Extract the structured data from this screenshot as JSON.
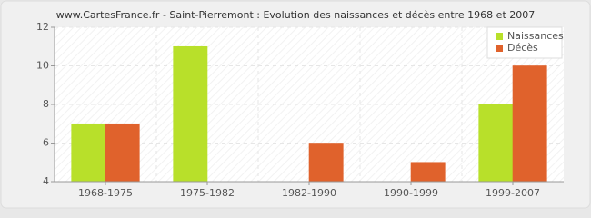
{
  "chart_data": {
    "type": "bar",
    "title": "www.CartesFrance.fr - Saint-Pierremont : Evolution des naissances et décès entre 1968 et 2007",
    "categories": [
      "1968-1975",
      "1975-1982",
      "1982-1990",
      "1990-1999",
      "1999-2007"
    ],
    "series": [
      {
        "name": "Naissances",
        "color": "#b8e02a",
        "values": [
          7,
          11,
          4,
          4,
          8
        ]
      },
      {
        "name": "Décès",
        "color": "#e0622c",
        "values": [
          7,
          4,
          6,
          5,
          10
        ]
      }
    ],
    "ylim": [
      4,
      12
    ],
    "yticks": [
      4,
      6,
      8,
      10,
      12
    ],
    "grid": true,
    "legend": "top-right"
  }
}
